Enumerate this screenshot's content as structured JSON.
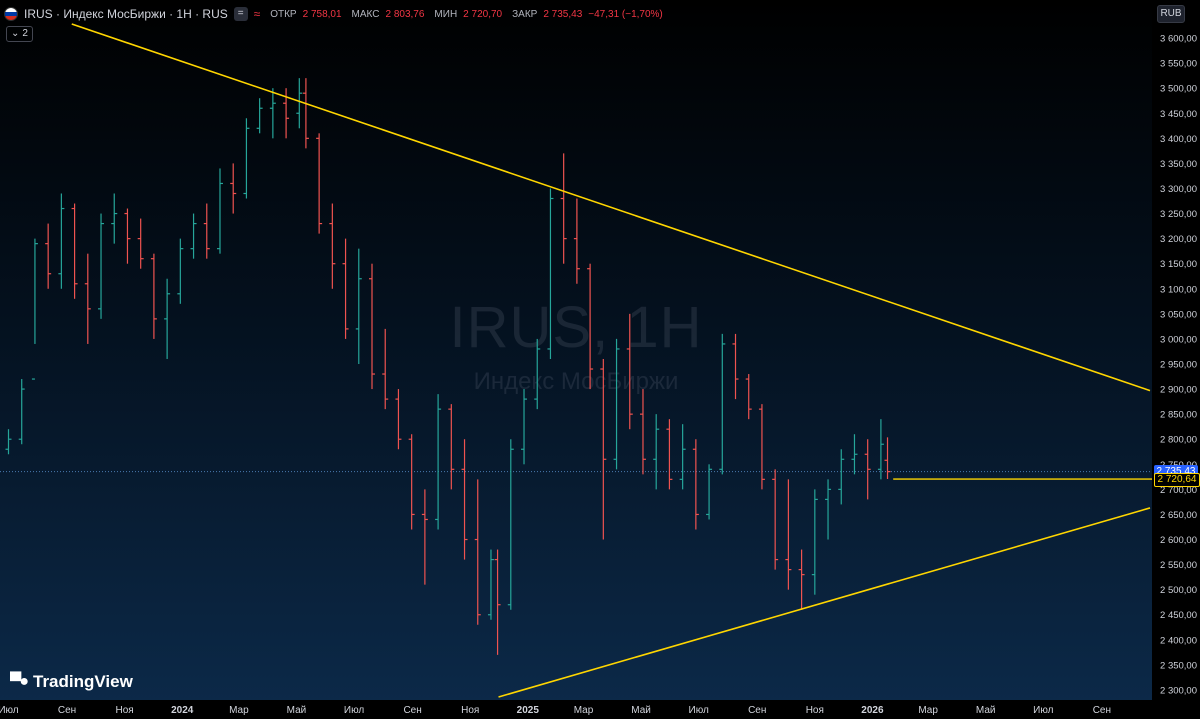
{
  "header": {
    "title": "IRUS · Индекс МосБиржи · 1H · RUS",
    "indicator_button": "=",
    "indicator_wave": "≈",
    "open_label": "ОТКР",
    "open": "2 758,01",
    "high_label": "МАКС",
    "high": "2 803,76",
    "low_label": "МИН",
    "low": "2 720,70",
    "close_label": "ЗАКР",
    "close": "2 735,43",
    "change": "−47,31 (−1,70%)",
    "indicators_count": "2",
    "indicators_chevron": "⌄"
  },
  "currency_button": "RUB",
  "watermark": {
    "symbol": "IRUS, 1H",
    "description": "Индекс МосБиржи"
  },
  "logo": {
    "text": "TradingView"
  },
  "price_tags": {
    "last": "2 735,43",
    "line": "2 720,64"
  },
  "colors": {
    "up": "#26a69a",
    "down": "#ef5350",
    "trendline": "#ffd600",
    "axis_text": "#d1d4dc",
    "last_price": "#2962ff"
  },
  "chart_data": {
    "type": "ohlc",
    "symbol": "IRUS",
    "y_axis": {
      "min": 2280,
      "max": 3620,
      "ticks": [
        2300,
        2350,
        2400,
        2450,
        2500,
        2550,
        2600,
        2650,
        2700,
        2750,
        2800,
        2850,
        2900,
        2950,
        3000,
        3050,
        3100,
        3150,
        3200,
        3250,
        3300,
        3350,
        3400,
        3450,
        3500,
        3550,
        3600
      ],
      "tick_labels": [
        "2 300,00",
        "2 350,00",
        "2 400,00",
        "2 450,00",
        "2 500,00",
        "2 550,00",
        "2 600,00",
        "2 650,00",
        "2 700,00",
        "2 750,00",
        "2 800,00",
        "2 850,00",
        "2 900,00",
        "2 950,00",
        "3 000,00",
        "3 050,00",
        "3 100,00",
        "3 150,00",
        "3 200,00",
        "3 250,00",
        "3 300,00",
        "3 350,00",
        "3 400,00",
        "3 450,00",
        "3 500,00",
        "3 550,00",
        "3 600,00"
      ]
    },
    "x_axis": {
      "labels": [
        "Июл",
        "Сен",
        "Ноя",
        "2024",
        "Мар",
        "Май",
        "Июл",
        "Сен",
        "Ноя",
        "2025",
        "Мар",
        "Май",
        "Июл",
        "Сен",
        "Ноя",
        "2026",
        "Мар",
        "Май",
        "Июл",
        "Сен"
      ],
      "bold": [
        "2024",
        "2025",
        "2026"
      ],
      "min": "2023-07-01",
      "max": "2026-10-31",
      "label_dates": [
        "2023-07-10",
        "2023-09-10",
        "2023-11-10",
        "2024-01-10",
        "2024-03-10",
        "2024-05-10",
        "2024-07-10",
        "2024-09-10",
        "2024-11-10",
        "2025-01-10",
        "2025-03-10",
        "2025-05-10",
        "2025-07-10",
        "2025-09-10",
        "2025-11-10",
        "2026-01-10",
        "2026-03-10",
        "2026-05-10",
        "2026-07-10",
        "2026-09-10"
      ]
    },
    "last_price": 2735.43,
    "horizontal_line": {
      "value": 2720.64,
      "from": "2026-02-01"
    },
    "trendlines": [
      {
        "from": [
          "2023-09-15",
          3628
        ],
        "to": [
          "2026-10-31",
          2897
        ]
      },
      {
        "from": [
          "2024-12-10",
          2286
        ],
        "to": [
          "2026-10-31",
          2663
        ]
      }
    ],
    "ohlc_weekly": [
      {
        "date": "2023-06-26",
        "open": 2740,
        "high": 2790,
        "low": 2710,
        "close": 2780
      },
      {
        "date": "2023-07-10",
        "open": 2780,
        "high": 2820,
        "low": 2770,
        "close": 2800
      },
      {
        "date": "2023-07-24",
        "open": 2800,
        "high": 2920,
        "low": 2790,
        "close": 2900
      },
      {
        "date": "2023-08-07",
        "open": 2920,
        "high": 3200,
        "low": 2990,
        "close": 3190
      },
      {
        "date": "2023-08-21",
        "open": 3190,
        "high": 3230,
        "low": 3100,
        "close": 3130
      },
      {
        "date": "2023-09-04",
        "open": 3130,
        "high": 3290,
        "low": 3100,
        "close": 3260
      },
      {
        "date": "2023-09-18",
        "open": 3260,
        "high": 3270,
        "low": 3080,
        "close": 3110
      },
      {
        "date": "2023-10-02",
        "open": 3110,
        "high": 3170,
        "low": 2990,
        "close": 3060
      },
      {
        "date": "2023-10-16",
        "open": 3060,
        "high": 3250,
        "low": 3040,
        "close": 3230
      },
      {
        "date": "2023-10-30",
        "open": 3230,
        "high": 3290,
        "low": 3190,
        "close": 3250
      },
      {
        "date": "2023-11-13",
        "open": 3250,
        "high": 3260,
        "low": 3150,
        "close": 3200
      },
      {
        "date": "2023-11-27",
        "open": 3200,
        "high": 3240,
        "low": 3140,
        "close": 3160
      },
      {
        "date": "2023-12-11",
        "open": 3160,
        "high": 3170,
        "low": 3000,
        "close": 3040
      },
      {
        "date": "2023-12-25",
        "open": 3040,
        "high": 3120,
        "low": 2960,
        "close": 3090
      },
      {
        "date": "2024-01-08",
        "open": 3090,
        "high": 3200,
        "low": 3070,
        "close": 3180
      },
      {
        "date": "2024-01-22",
        "open": 3180,
        "high": 3250,
        "low": 3160,
        "close": 3230
      },
      {
        "date": "2024-02-05",
        "open": 3230,
        "high": 3270,
        "low": 3160,
        "close": 3180
      },
      {
        "date": "2024-02-19",
        "open": 3180,
        "high": 3340,
        "low": 3170,
        "close": 3310
      },
      {
        "date": "2024-03-04",
        "open": 3310,
        "high": 3350,
        "low": 3250,
        "close": 3290
      },
      {
        "date": "2024-03-18",
        "open": 3290,
        "high": 3440,
        "low": 3280,
        "close": 3420
      },
      {
        "date": "2024-04-01",
        "open": 3420,
        "high": 3480,
        "low": 3410,
        "close": 3460
      },
      {
        "date": "2024-04-15",
        "open": 3460,
        "high": 3500,
        "low": 3400,
        "close": 3470
      },
      {
        "date": "2024-04-29",
        "open": 3470,
        "high": 3500,
        "low": 3400,
        "close": 3440
      },
      {
        "date": "2024-05-13",
        "open": 3450,
        "high": 3520,
        "low": 3420,
        "close": 3490
      },
      {
        "date": "2024-05-20",
        "open": 3490,
        "high": 3520,
        "low": 3380,
        "close": 3400
      },
      {
        "date": "2024-06-03",
        "open": 3400,
        "high": 3410,
        "low": 3210,
        "close": 3230
      },
      {
        "date": "2024-06-17",
        "open": 3230,
        "high": 3270,
        "low": 3100,
        "close": 3150
      },
      {
        "date": "2024-07-01",
        "open": 3150,
        "high": 3200,
        "low": 3000,
        "close": 3020
      },
      {
        "date": "2024-07-15",
        "open": 3020,
        "high": 3180,
        "low": 2950,
        "close": 3120
      },
      {
        "date": "2024-07-29",
        "open": 3120,
        "high": 3150,
        "low": 2900,
        "close": 2930
      },
      {
        "date": "2024-08-12",
        "open": 2930,
        "high": 3020,
        "low": 2860,
        "close": 2880
      },
      {
        "date": "2024-08-26",
        "open": 2880,
        "high": 2900,
        "low": 2780,
        "close": 2800
      },
      {
        "date": "2024-09-09",
        "open": 2800,
        "high": 2810,
        "low": 2620,
        "close": 2650
      },
      {
        "date": "2024-09-23",
        "open": 2650,
        "high": 2700,
        "low": 2510,
        "close": 2640
      },
      {
        "date": "2024-10-07",
        "open": 2640,
        "high": 2890,
        "low": 2620,
        "close": 2860
      },
      {
        "date": "2024-10-21",
        "open": 2860,
        "high": 2870,
        "low": 2700,
        "close": 2740
      },
      {
        "date": "2024-11-04",
        "open": 2740,
        "high": 2800,
        "low": 2560,
        "close": 2600
      },
      {
        "date": "2024-11-18",
        "open": 2600,
        "high": 2720,
        "low": 2430,
        "close": 2450
      },
      {
        "date": "2024-12-02",
        "open": 2450,
        "high": 2580,
        "low": 2440,
        "close": 2560
      },
      {
        "date": "2024-12-09",
        "open": 2560,
        "high": 2580,
        "low": 2370,
        "close": 2470
      },
      {
        "date": "2024-12-23",
        "open": 2470,
        "high": 2800,
        "low": 2460,
        "close": 2780
      },
      {
        "date": "2025-01-06",
        "open": 2780,
        "high": 2900,
        "low": 2750,
        "close": 2880
      },
      {
        "date": "2025-01-20",
        "open": 2880,
        "high": 3000,
        "low": 2860,
        "close": 2980
      },
      {
        "date": "2025-02-03",
        "open": 2980,
        "high": 3300,
        "low": 2960,
        "close": 3280
      },
      {
        "date": "2025-02-17",
        "open": 3280,
        "high": 3370,
        "low": 3150,
        "close": 3200
      },
      {
        "date": "2025-03-03",
        "open": 3200,
        "high": 3280,
        "low": 3110,
        "close": 3140
      },
      {
        "date": "2025-03-17",
        "open": 3140,
        "high": 3150,
        "low": 2900,
        "close": 2940
      },
      {
        "date": "2025-03-31",
        "open": 2940,
        "high": 2960,
        "low": 2600,
        "close": 2760
      },
      {
        "date": "2025-04-14",
        "open": 2760,
        "high": 3000,
        "low": 2740,
        "close": 2980
      },
      {
        "date": "2025-04-28",
        "open": 2980,
        "high": 3050,
        "low": 2820,
        "close": 2850
      },
      {
        "date": "2025-05-12",
        "open": 2850,
        "high": 2900,
        "low": 2730,
        "close": 2760
      },
      {
        "date": "2025-05-26",
        "open": 2760,
        "high": 2850,
        "low": 2700,
        "close": 2820
      },
      {
        "date": "2025-06-09",
        "open": 2820,
        "high": 2840,
        "low": 2700,
        "close": 2720
      },
      {
        "date": "2025-06-23",
        "open": 2720,
        "high": 2830,
        "low": 2700,
        "close": 2780
      },
      {
        "date": "2025-07-07",
        "open": 2780,
        "high": 2800,
        "low": 2620,
        "close": 2650
      },
      {
        "date": "2025-07-21",
        "open": 2650,
        "high": 2750,
        "low": 2640,
        "close": 2740
      },
      {
        "date": "2025-08-04",
        "open": 2740,
        "high": 3010,
        "low": 2730,
        "close": 2990
      },
      {
        "date": "2025-08-18",
        "open": 2990,
        "high": 3010,
        "low": 2880,
        "close": 2920
      },
      {
        "date": "2025-09-01",
        "open": 2920,
        "high": 2930,
        "low": 2840,
        "close": 2860
      },
      {
        "date": "2025-09-15",
        "open": 2860,
        "high": 2870,
        "low": 2700,
        "close": 2720
      },
      {
        "date": "2025-09-29",
        "open": 2720,
        "high": 2740,
        "low": 2540,
        "close": 2560
      },
      {
        "date": "2025-10-13",
        "open": 2560,
        "high": 2720,
        "low": 2500,
        "close": 2540
      },
      {
        "date": "2025-10-27",
        "open": 2540,
        "high": 2580,
        "low": 2460,
        "close": 2530
      },
      {
        "date": "2025-11-10",
        "open": 2530,
        "high": 2700,
        "low": 2490,
        "close": 2680
      },
      {
        "date": "2025-11-24",
        "open": 2680,
        "high": 2720,
        "low": 2600,
        "close": 2700
      },
      {
        "date": "2025-12-08",
        "open": 2700,
        "high": 2780,
        "low": 2670,
        "close": 2760
      },
      {
        "date": "2025-12-22",
        "open": 2760,
        "high": 2810,
        "low": 2730,
        "close": 2770
      },
      {
        "date": "2026-01-05",
        "open": 2770,
        "high": 2800,
        "low": 2680,
        "close": 2740
      },
      {
        "date": "2026-01-19",
        "open": 2740,
        "high": 2840,
        "low": 2720,
        "close": 2790
      },
      {
        "date": "2026-01-26",
        "open": 2758.01,
        "high": 2803.76,
        "low": 2720.7,
        "close": 2735.43
      }
    ]
  }
}
